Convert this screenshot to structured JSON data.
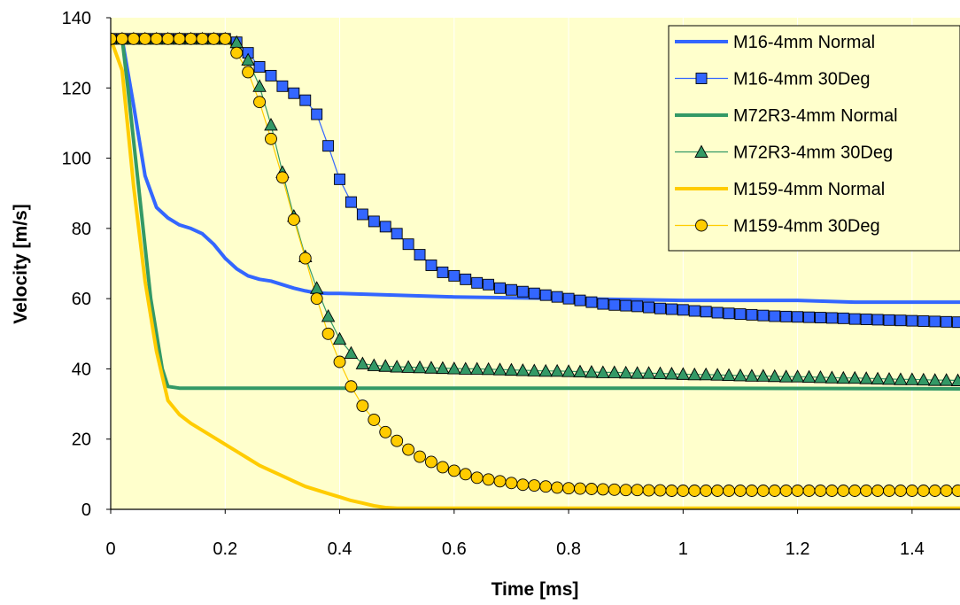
{
  "chart_data": {
    "type": "line",
    "title": "",
    "xlabel": "Time [ms]",
    "ylabel": "Velocity [m/s]",
    "xlim": [
      0,
      1.5
    ],
    "ylim": [
      0,
      140
    ],
    "xticks": [
      "0",
      "0.2",
      "0.4",
      "0.6",
      "0.8",
      "1",
      "1.2",
      "1.4"
    ],
    "yticks": [
      "0",
      "20",
      "40",
      "60",
      "80",
      "100",
      "120",
      "140"
    ],
    "grid": "vertical-only",
    "legend_position": "top-right",
    "background": "#FFFFCC",
    "series": [
      {
        "name": "M16-4mm Normal",
        "color": "#3366FF",
        "marker": "none",
        "x": [
          0,
          0.02,
          0.04,
          0.06,
          0.08,
          0.1,
          0.12,
          0.14,
          0.16,
          0.18,
          0.2,
          0.22,
          0.24,
          0.26,
          0.28,
          0.3,
          0.32,
          0.34,
          0.36,
          0.38,
          0.4,
          0.5,
          0.6,
          0.8,
          1.0,
          1.2,
          1.3,
          1.5
        ],
        "y": [
          134,
          134,
          115,
          95,
          86,
          83,
          81,
          80,
          78.5,
          75.5,
          71.5,
          68.5,
          66.5,
          65.5,
          65,
          64,
          63,
          62.2,
          61.6,
          61.5,
          61.5,
          61,
          60.5,
          60,
          59.5,
          59.5,
          59,
          59
        ]
      },
      {
        "name": "M16-4mm 30Deg",
        "color": "#3366FF",
        "marker": "square",
        "x": [
          0,
          0.02,
          0.04,
          0.06,
          0.08,
          0.1,
          0.12,
          0.14,
          0.16,
          0.18,
          0.2,
          0.22,
          0.24,
          0.26,
          0.28,
          0.3,
          0.32,
          0.34,
          0.36,
          0.38,
          0.4,
          0.42,
          0.44,
          0.46,
          0.48,
          0.5,
          0.52,
          0.54,
          0.56,
          0.58,
          0.6,
          0.62,
          0.64,
          0.66,
          0.68,
          0.7,
          0.72,
          0.74,
          0.76,
          0.78,
          0.8,
          0.82,
          0.84,
          0.86,
          0.88,
          0.9,
          0.92,
          0.94,
          0.96,
          0.98,
          1.0,
          1.02,
          1.04,
          1.06,
          1.08,
          1.1,
          1.12,
          1.14,
          1.16,
          1.18,
          1.2,
          1.22,
          1.24,
          1.26,
          1.28,
          1.3,
          1.32,
          1.34,
          1.36,
          1.38,
          1.4,
          1.42,
          1.44,
          1.46,
          1.48
        ],
        "y": [
          134,
          134,
          134,
          134,
          134,
          134,
          134,
          134,
          134,
          134,
          134,
          133,
          130,
          126,
          123.5,
          120.5,
          118.5,
          116.5,
          112.5,
          103.5,
          94,
          87.5,
          84,
          82,
          80.5,
          78.5,
          75.5,
          72.5,
          69.5,
          67.5,
          66.5,
          65.5,
          64.5,
          64,
          63,
          62.5,
          62,
          61.5,
          61,
          60.5,
          60,
          59.5,
          59,
          58.5,
          58.2,
          58,
          57.8,
          57.5,
          57.2,
          57,
          56.8,
          56.5,
          56.3,
          56,
          55.8,
          55.6,
          55.4,
          55.2,
          55,
          54.9,
          54.8,
          54.7,
          54.6,
          54.5,
          54.4,
          54.2,
          54.1,
          54,
          53.9,
          53.8,
          53.7,
          53.6,
          53.5,
          53.4,
          53.3
        ]
      },
      {
        "name": "M72R3-4mm Normal",
        "color": "#339966",
        "marker": "none",
        "x": [
          0,
          0.02,
          0.03,
          0.05,
          0.07,
          0.09,
          0.1,
          0.12,
          0.2,
          0.5,
          1.0,
          1.5
        ],
        "y": [
          134,
          134,
          120,
          90,
          60,
          40,
          35,
          34.5,
          34.5,
          34.5,
          34.5,
          34.3
        ]
      },
      {
        "name": "M72R3-4mm 30Deg",
        "color": "#339966",
        "marker": "triangle",
        "x": [
          0,
          0.02,
          0.04,
          0.06,
          0.08,
          0.1,
          0.12,
          0.14,
          0.16,
          0.18,
          0.2,
          0.22,
          0.24,
          0.26,
          0.28,
          0.3,
          0.32,
          0.34,
          0.36,
          0.38,
          0.4,
          0.42,
          0.44,
          0.46,
          0.48,
          0.5,
          0.52,
          0.54,
          0.56,
          0.58,
          0.6,
          0.62,
          0.64,
          0.66,
          0.68,
          0.7,
          0.72,
          0.74,
          0.76,
          0.78,
          0.8,
          0.82,
          0.84,
          0.86,
          0.88,
          0.9,
          0.92,
          0.94,
          0.96,
          0.98,
          1.0,
          1.02,
          1.04,
          1.06,
          1.08,
          1.1,
          1.12,
          1.14,
          1.16,
          1.18,
          1.2,
          1.22,
          1.24,
          1.26,
          1.28,
          1.3,
          1.32,
          1.34,
          1.36,
          1.38,
          1.4,
          1.42,
          1.44,
          1.46,
          1.48
        ],
        "y": [
          134,
          134,
          134,
          134,
          134,
          134,
          134,
          134,
          134,
          134,
          134,
          133,
          128,
          120.5,
          109.5,
          96,
          83.5,
          72,
          63,
          55,
          48.5,
          44.5,
          41.5,
          41,
          40.8,
          40.6,
          40.5,
          40.4,
          40.3,
          40.2,
          40.1,
          40,
          40,
          39.9,
          39.8,
          39.7,
          39.6,
          39.5,
          39.4,
          39.4,
          39.3,
          39.2,
          39.1,
          39,
          39,
          38.9,
          38.8,
          38.8,
          38.7,
          38.6,
          38.5,
          38.4,
          38.4,
          38.3,
          38.2,
          38.1,
          38,
          38,
          37.9,
          37.8,
          37.8,
          37.7,
          37.6,
          37.5,
          37.4,
          37.4,
          37.3,
          37.2,
          37.1,
          37,
          37,
          36.9,
          36.8,
          36.8,
          36.7
        ]
      },
      {
        "name": "M159-4mm Normal",
        "color": "#FFCC00",
        "marker": "none",
        "x": [
          0,
          0.02,
          0.04,
          0.06,
          0.08,
          0.1,
          0.12,
          0.14,
          0.16,
          0.18,
          0.2,
          0.22,
          0.24,
          0.26,
          0.28,
          0.3,
          0.32,
          0.34,
          0.36,
          0.38,
          0.4,
          0.42,
          0.44,
          0.46,
          0.48,
          0.5,
          1.0,
          1.5
        ],
        "y": [
          134,
          125,
          92,
          65,
          45,
          31,
          27,
          24.5,
          22.5,
          20.5,
          18.5,
          16.5,
          14.5,
          12.5,
          11,
          9.5,
          8,
          6.5,
          5.5,
          4.5,
          3.5,
          2.5,
          1.8,
          1,
          0.5,
          0.3,
          0.3,
          0.3
        ]
      },
      {
        "name": "M159-4mm 30Deg",
        "color": "#FFCC00",
        "marker": "circle",
        "x": [
          0,
          0.02,
          0.04,
          0.06,
          0.08,
          0.1,
          0.12,
          0.14,
          0.16,
          0.18,
          0.2,
          0.22,
          0.24,
          0.26,
          0.28,
          0.3,
          0.32,
          0.34,
          0.36,
          0.38,
          0.4,
          0.42,
          0.44,
          0.46,
          0.48,
          0.5,
          0.52,
          0.54,
          0.56,
          0.58,
          0.6,
          0.62,
          0.64,
          0.66,
          0.68,
          0.7,
          0.72,
          0.74,
          0.76,
          0.78,
          0.8,
          0.82,
          0.84,
          0.86,
          0.88,
          0.9,
          0.92,
          0.94,
          0.96,
          0.98,
          1.0,
          1.02,
          1.04,
          1.06,
          1.08,
          1.1,
          1.12,
          1.14,
          1.16,
          1.18,
          1.2,
          1.22,
          1.24,
          1.26,
          1.28,
          1.3,
          1.32,
          1.34,
          1.36,
          1.38,
          1.4,
          1.42,
          1.44,
          1.46,
          1.48
        ],
        "y": [
          134,
          134,
          134,
          134,
          134,
          134,
          134,
          134,
          134,
          134,
          134,
          130,
          124.5,
          116,
          105.5,
          94.5,
          82.5,
          71.5,
          60,
          50,
          42,
          35,
          29.5,
          25.5,
          22,
          19.5,
          17,
          15,
          13.5,
          12,
          11,
          10,
          9,
          8.5,
          8,
          7.5,
          7,
          6.8,
          6.5,
          6.2,
          6,
          5.9,
          5.8,
          5.7,
          5.6,
          5.5,
          5.5,
          5.4,
          5.4,
          5.3,
          5.3,
          5.3,
          5.3,
          5.3,
          5.3,
          5.3,
          5.3,
          5.3,
          5.3,
          5.3,
          5.3,
          5.3,
          5.3,
          5.3,
          5.3,
          5.3,
          5.3,
          5.3,
          5.3,
          5.3,
          5.3,
          5.3,
          5.3,
          5.3,
          5.3
        ]
      }
    ]
  }
}
